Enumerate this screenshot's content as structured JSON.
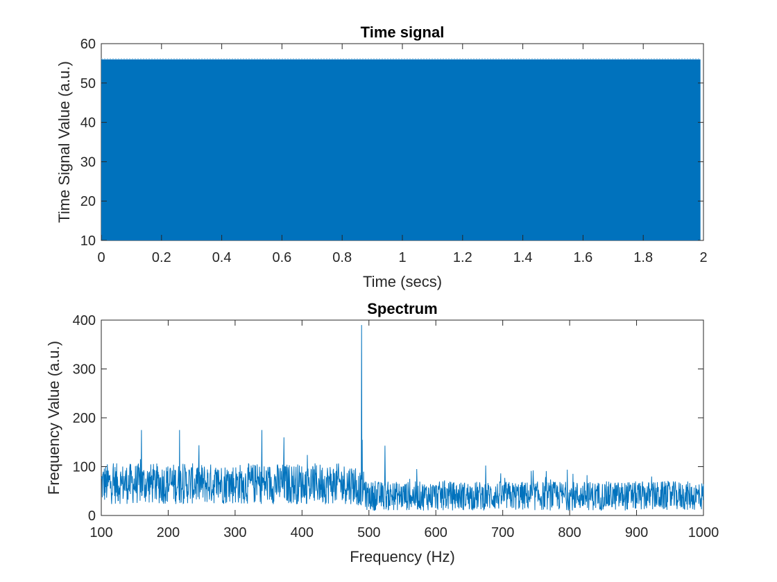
{
  "chart_data": [
    {
      "type": "area",
      "title": "Time signal",
      "xlabel": "Time (secs)",
      "ylabel": "Time Signal Value (a.u.)",
      "xlim": [
        0,
        2
      ],
      "ylim": [
        10,
        60
      ],
      "xticks": [
        0,
        0.2,
        0.4,
        0.6,
        0.8,
        1,
        1.2,
        1.4,
        1.6,
        1.8,
        2
      ],
      "xtick_labels": [
        "0",
        "0.2",
        "0.4",
        "0.6",
        "0.8",
        "1",
        "1.2",
        "1.4",
        "1.6",
        "1.8",
        "2"
      ],
      "yticks": [
        10,
        20,
        30,
        40,
        50,
        60
      ],
      "ytick_labels": [
        "10",
        "20",
        "30",
        "40",
        "50",
        "60"
      ],
      "series": [
        {
          "x_range": [
            0,
            1.99
          ],
          "min": 10,
          "max": 56
        }
      ],
      "color": "#0072BD",
      "grid": false
    },
    {
      "type": "line",
      "title": "Spectrum",
      "xlabel": "Frequency (Hz)",
      "ylabel": "Frequency Value (a.u.)",
      "xlim": [
        100,
        1000
      ],
      "ylim": [
        0,
        400
      ],
      "xticks": [
        100,
        200,
        300,
        400,
        500,
        600,
        700,
        800,
        900,
        1000
      ],
      "xtick_labels": [
        "100",
        "200",
        "300",
        "400",
        "500",
        "600",
        "700",
        "800",
        "900",
        "1000"
      ],
      "yticks": [
        0,
        100,
        200,
        300,
        400
      ],
      "ytick_labels": [
        "0",
        "100",
        "200",
        "300",
        "400"
      ],
      "peaks": [
        {
          "x": 160,
          "y": 175
        },
        {
          "x": 217,
          "y": 175
        },
        {
          "x": 340,
          "y": 175
        },
        {
          "x": 373,
          "y": 160
        },
        {
          "x": 489,
          "y": 390
        },
        {
          "x": 490,
          "y": 155
        },
        {
          "x": 524,
          "y": 143
        }
      ],
      "baseline": {
        "segments": [
          {
            "x_range": [
              100,
              480
            ],
            "mean": 65,
            "spread": 42
          },
          {
            "x_range": [
              495,
              1000
            ],
            "mean": 40,
            "spread": 30
          }
        ]
      },
      "color": "#0072BD",
      "grid": false
    }
  ]
}
